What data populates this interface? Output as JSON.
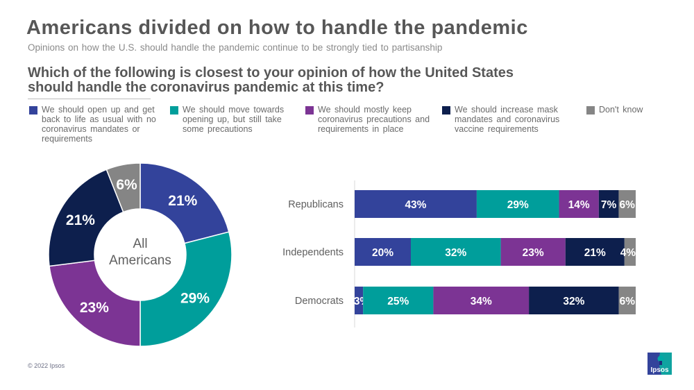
{
  "header": {
    "title": "Americans divided on how to handle the pandemic",
    "subtitle": "Opinions on how the U.S. should handle the pandemic continue to be strongly tied to partisanship",
    "question": "Which of the following is closest to your opinion of how the United States should handle the coronavirus pandemic at this time?"
  },
  "colors": {
    "open_up": "#33439b",
    "move_towards": "#009e9b",
    "keep": "#7c3494",
    "increase": "#0d1f4d",
    "dont_know": "#858585"
  },
  "legend": [
    {
      "label": "We should open up and get back to life as usual with no coronavirus mandates or requirements",
      "color": "#33439b"
    },
    {
      "label": "We should move towards opening up, but still take some precautions",
      "color": "#009e9b"
    },
    {
      "label": "We should mostly keep coronavirus precautions and requirements in place",
      "color": "#7c3494"
    },
    {
      "label": "We should increase mask mandates and coronavirus vaccine requirements",
      "color": "#0d1f4d"
    },
    {
      "label": "Don't know",
      "color": "#858585"
    }
  ],
  "chart_data": [
    {
      "type": "pie",
      "title": "All Americans",
      "center_label": "All Americans",
      "categories": [
        "We should open up and get back to life as usual with no coronavirus mandates or requirements",
        "We should move towards opening up, but still take some precautions",
        "We should mostly keep coronavirus precautions and requirements in place",
        "We should increase mask mandates and coronavirus vaccine requirements",
        "Don't know"
      ],
      "values": [
        21,
        29,
        23,
        21,
        6
      ],
      "labels": [
        "21%",
        "29%",
        "23%",
        "21%",
        "6%"
      ],
      "colors": [
        "#33439b",
        "#009e9b",
        "#7c3494",
        "#0d1f4d",
        "#858585"
      ]
    },
    {
      "type": "bar",
      "orientation": "horizontal",
      "stacked": true,
      "categories": [
        "Republicans",
        "Independents",
        "Democrats"
      ],
      "series": [
        {
          "name": "We should open up and get back to life as usual with no coronavirus mandates or requirements",
          "color": "#33439b",
          "values": [
            43,
            20,
            3
          ],
          "labels": [
            "43%",
            "20%",
            "3%"
          ]
        },
        {
          "name": "We should move towards opening up, but still take some precautions",
          "color": "#009e9b",
          "values": [
            29,
            32,
            25
          ],
          "labels": [
            "29%",
            "32%",
            "25%"
          ]
        },
        {
          "name": "We should mostly keep coronavirus precautions and requirements in place",
          "color": "#7c3494",
          "values": [
            14,
            23,
            34
          ],
          "labels": [
            "14%",
            "23%",
            "34%"
          ]
        },
        {
          "name": "We should increase mask mandates and coronavirus vaccine requirements",
          "color": "#0d1f4d",
          "values": [
            7,
            21,
            32
          ],
          "labels": [
            "7%",
            "21%",
            "32%"
          ]
        },
        {
          "name": "Don't know",
          "color": "#858585",
          "values": [
            6,
            4,
            6
          ],
          "labels": [
            "6%",
            "4%",
            "6%"
          ]
        }
      ],
      "xlim": [
        0,
        100
      ]
    }
  ],
  "footer": {
    "copyright": "© 2022 Ipsos",
    "logo_text": "Ipsos"
  }
}
